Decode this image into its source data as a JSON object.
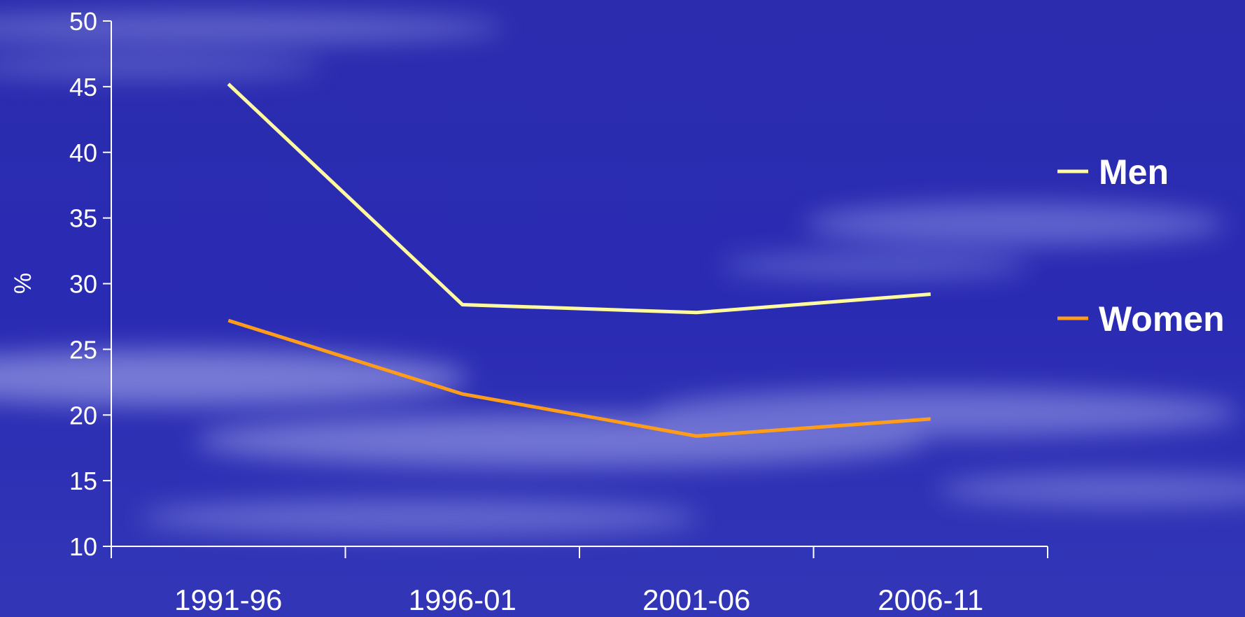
{
  "chart_data": {
    "type": "line",
    "title": "",
    "xlabel": "",
    "ylabel": "%",
    "ylim": [
      10,
      50
    ],
    "yticks": [
      10,
      15,
      20,
      25,
      30,
      35,
      40,
      45,
      50
    ],
    "categories": [
      "1991-96",
      "1996-01",
      "2001-06",
      "2006-11"
    ],
    "series": [
      {
        "name": "Men",
        "color": "#fffaa0",
        "values": [
          45.2,
          28.4,
          27.8,
          29.2
        ]
      },
      {
        "name": "Women",
        "color": "#ff9c1a",
        "values": [
          27.2,
          21.6,
          18.4,
          19.7
        ]
      }
    ],
    "legend_position": "right",
    "grid": false
  },
  "colors": {
    "axis": "#ffffff",
    "background_top": "#2a2ab0",
    "background_bottom": "#2f33b5"
  }
}
